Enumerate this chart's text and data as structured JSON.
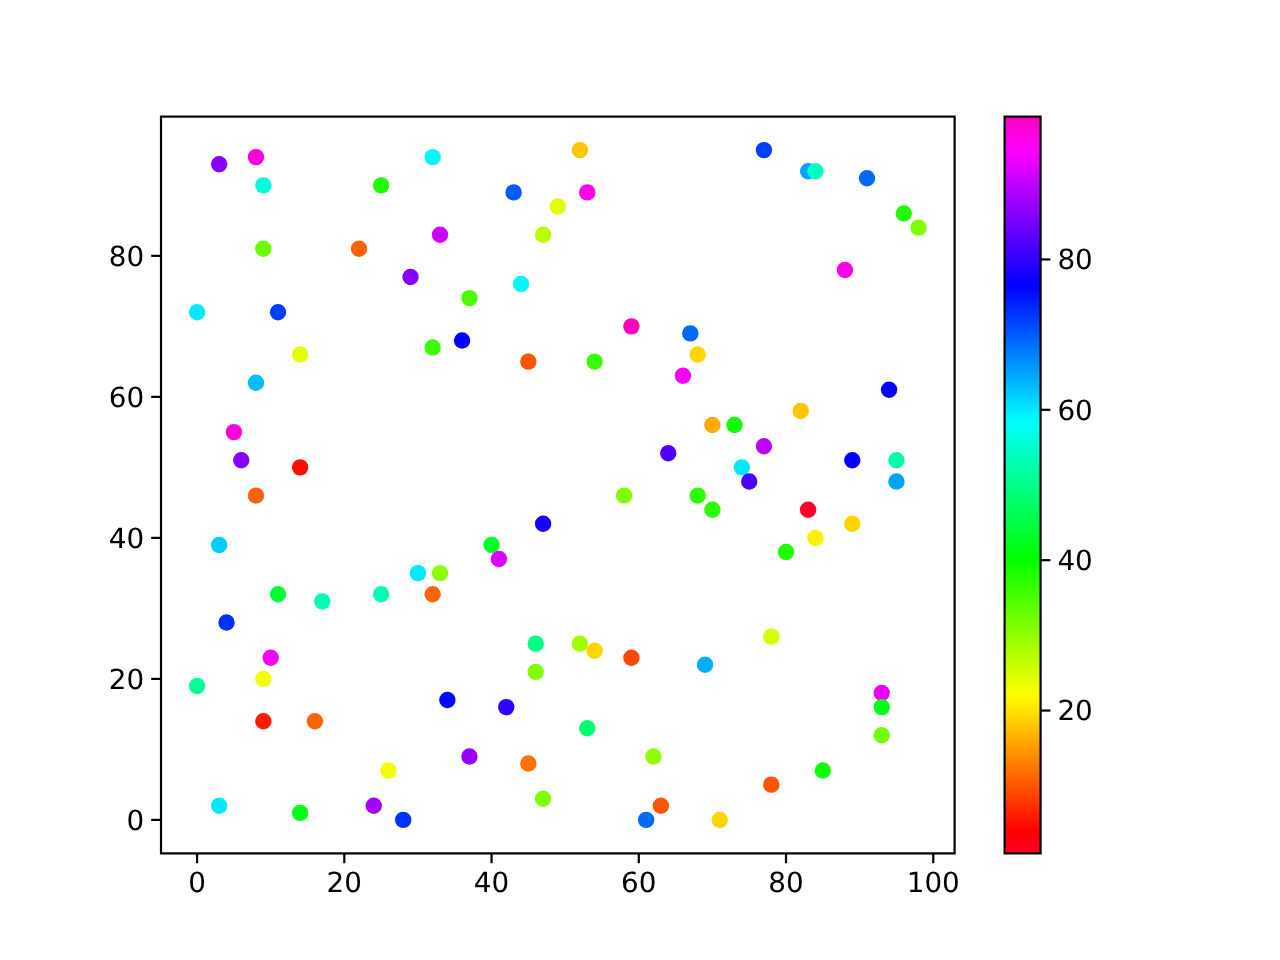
{
  "chart_data": {
    "type": "scatter",
    "marker": "circle",
    "x": [
      3,
      8,
      9,
      32,
      25,
      43,
      49,
      33,
      47,
      9,
      22,
      29,
      37,
      44,
      0,
      11,
      32,
      36,
      45,
      14,
      8,
      5,
      6,
      14,
      8,
      52,
      77,
      83,
      84,
      91,
      53,
      96,
      98,
      88,
      59,
      67,
      68,
      54,
      66,
      94,
      82,
      70,
      73,
      77,
      64,
      89,
      95,
      74,
      75,
      95,
      58,
      68,
      47,
      70,
      83,
      89,
      84,
      80,
      46,
      46,
      52,
      54,
      59,
      78,
      69,
      93,
      93,
      93,
      53,
      62,
      85,
      78,
      63,
      61,
      71,
      47,
      3,
      40,
      41,
      30,
      33,
      11,
      17,
      25,
      32,
      4,
      10,
      9,
      0,
      9,
      16,
      34,
      42,
      37,
      45,
      26,
      3,
      14,
      24,
      28
    ],
    "values": [
      93,
      94,
      90,
      94,
      90,
      89,
      87,
      83,
      83,
      81,
      81,
      77,
      74,
      76,
      72,
      72,
      67,
      68,
      65,
      66,
      62,
      55,
      51,
      50,
      46,
      95,
      95,
      92,
      92,
      91,
      89,
      86,
      84,
      78,
      70,
      69,
      66,
      65,
      63,
      61,
      58,
      56,
      56,
      53,
      52,
      51,
      51,
      50,
      48,
      48,
      46,
      46,
      42,
      44,
      44,
      42,
      40,
      38,
      25,
      21,
      25,
      24,
      23,
      26,
      22,
      18,
      16,
      12,
      13,
      9,
      7,
      5,
      2,
      0,
      0,
      3,
      39,
      39,
      37,
      35,
      35,
      32,
      31,
      32,
      32,
      28,
      23,
      20,
      19,
      14,
      14,
      17,
      16,
      9,
      8,
      7,
      2,
      1,
      2,
      0
    ],
    "cvalues": [
      86,
      97,
      56,
      59,
      38,
      70,
      24,
      91,
      27,
      33,
      11,
      86,
      35,
      59,
      60,
      72,
      36,
      77,
      10,
      24,
      63,
      97,
      86,
      5,
      11,
      18,
      72,
      65,
      54,
      69,
      96,
      38,
      31,
      96,
      99,
      69,
      19,
      36,
      94,
      77,
      18,
      16,
      39,
      90,
      82,
      77,
      52,
      60,
      82,
      65,
      31,
      37,
      78,
      37,
      1,
      19,
      21,
      38,
      50,
      31,
      29,
      19,
      9,
      25,
      64,
      93,
      42,
      32,
      48,
      30,
      39,
      10,
      10,
      69,
      19,
      31,
      62,
      43,
      92,
      60,
      30,
      44,
      53,
      53,
      11,
      73,
      94,
      23,
      51,
      6,
      11,
      76,
      80,
      87,
      12,
      23,
      60,
      42,
      88,
      73
    ],
    "clim": [
      1,
      99
    ],
    "cticks": [
      20,
      40,
      60,
      80
    ],
    "xlim": [
      -4.9,
      102.9
    ],
    "ylim": [
      -4.75,
      99.75
    ],
    "xticks": [
      0,
      20,
      40,
      60,
      80,
      100
    ],
    "yticks": [
      0,
      20,
      40,
      60,
      80
    ]
  }
}
